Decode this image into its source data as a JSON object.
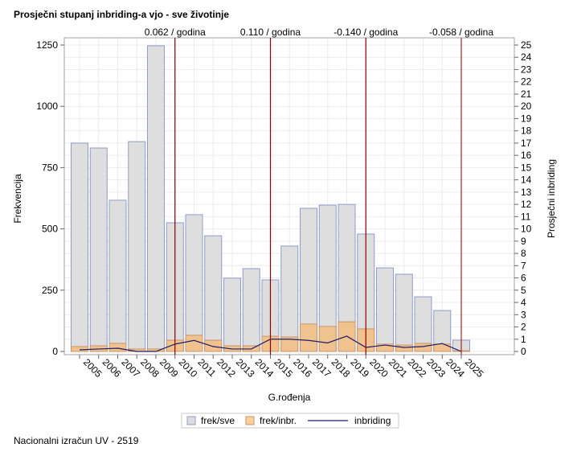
{
  "chart_data": {
    "type": "bar",
    "title": "Prosječni stupanj inbriding-a vjo - sve životinje",
    "xlabel": "G.rođenja",
    "ylabel": "Frekvencija",
    "y2label": "Prosječni inbriding",
    "ylim": [
      0,
      1250
    ],
    "y2lim": [
      0,
      25
    ],
    "yticks": [
      0,
      250,
      500,
      750,
      1000,
      1250
    ],
    "y2ticks": [
      0,
      1,
      2,
      3,
      4,
      5,
      6,
      7,
      8,
      9,
      10,
      11,
      12,
      13,
      14,
      15,
      16,
      17,
      18,
      19,
      20,
      21,
      22,
      23,
      24,
      25
    ],
    "grid": true,
    "legend_placement": "bottom",
    "categories": [
      "2005",
      "2006",
      "2007",
      "2008",
      "2009",
      "2010",
      "2011",
      "2012",
      "2013",
      "2014",
      "2015",
      "2016",
      "2017",
      "2018",
      "2019",
      "2020",
      "2021",
      "2022",
      "2023",
      "2024",
      "2025"
    ],
    "series": [
      {
        "name": "frek/sve",
        "type": "bar",
        "axis": "left",
        "color": "#dcdcdc",
        "edge": "#8f9ccc",
        "values": [
          850,
          830,
          617,
          856,
          1247,
          525,
          558,
          472,
          299,
          338,
          292,
          430,
          584,
          597,
          600,
          479,
          341,
          315,
          223,
          167,
          46
        ]
      },
      {
        "name": "frek/inbr.",
        "type": "bar",
        "axis": "left",
        "color": "#f0c088",
        "edge": "#c8956a",
        "values": [
          20,
          23,
          33,
          10,
          10,
          46,
          66,
          46,
          23,
          23,
          62,
          59,
          112,
          102,
          121,
          92,
          30,
          26,
          33,
          30,
          3
        ]
      },
      {
        "name": "inbriding",
        "type": "line",
        "axis": "right",
        "color": "#1c1c6c",
        "values": [
          0.13,
          0.2,
          0.26,
          0.0,
          0.0,
          0.6,
          0.9,
          0.4,
          0.2,
          0.2,
          1.0,
          1.0,
          0.9,
          0.7,
          1.25,
          0.33,
          0.52,
          0.33,
          0.4,
          0.65,
          0.0
        ]
      }
    ],
    "reference_lines": [
      {
        "category": "2010",
        "label": "0.062 / godina",
        "color": "#8b0000"
      },
      {
        "category": "2015",
        "label": "0.110 / godina",
        "color": "#8b0000"
      },
      {
        "category": "2020",
        "label": "-0.140 / godina",
        "color": "#8b0000"
      },
      {
        "category": "2025",
        "label": "-0.058 / godina",
        "color": "#b22222"
      }
    ]
  },
  "footer": "Nacionalni izračun UV - 2519"
}
